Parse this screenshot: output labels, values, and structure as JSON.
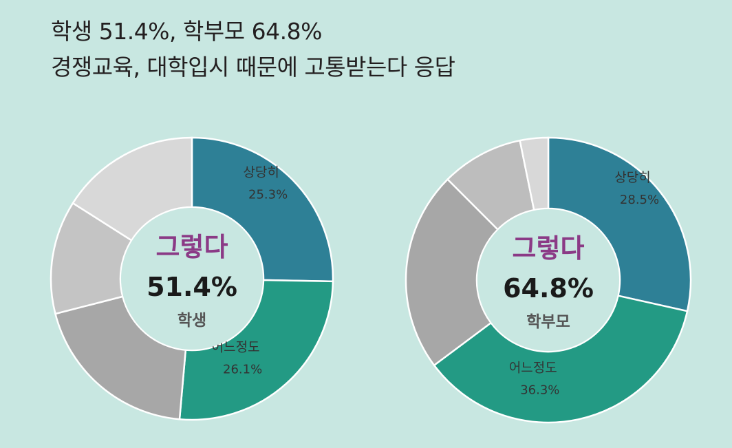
{
  "title": {
    "line1": "학생 51.4%, 학부모 64.8%",
    "line2": "경쟁교육, 대학입시 때문에 고통받는다 응답"
  },
  "chart_data": [
    {
      "type": "pie",
      "center": {
        "label": "그렇다",
        "value": "51.4%",
        "group": "학생"
      },
      "slices": [
        {
          "label": "상당히",
          "value": 25.3,
          "value_text": "25.3%",
          "color": "#2e8096"
        },
        {
          "label": "어느정도",
          "value": 26.1,
          "value_text": "26.1%",
          "color": "#239a84"
        },
        {
          "label": "",
          "value": 19.6,
          "value_text": "",
          "color": "#a7a7a7"
        },
        {
          "label": "",
          "value": 13.0,
          "value_text": "",
          "color": "#c4c4c4"
        },
        {
          "label": "",
          "value": 16.0,
          "value_text": "",
          "color": "#d8d8d8"
        }
      ]
    },
    {
      "type": "pie",
      "center": {
        "label": "그렇다",
        "value": "64.8%",
        "group": "학부모"
      },
      "slices": [
        {
          "label": "상당히",
          "value": 28.5,
          "value_text": "28.5%",
          "color": "#2e8096"
        },
        {
          "label": "어느정도",
          "value": 36.3,
          "value_text": "36.3%",
          "color": "#239a84"
        },
        {
          "label": "",
          "value": 22.7,
          "value_text": "",
          "color": "#a7a7a7"
        },
        {
          "label": "",
          "value": 9.3,
          "value_text": "",
          "color": "#bdbdbd"
        },
        {
          "label": "",
          "value": 3.2,
          "value_text": "",
          "color": "#d8d8d8"
        }
      ]
    }
  ]
}
